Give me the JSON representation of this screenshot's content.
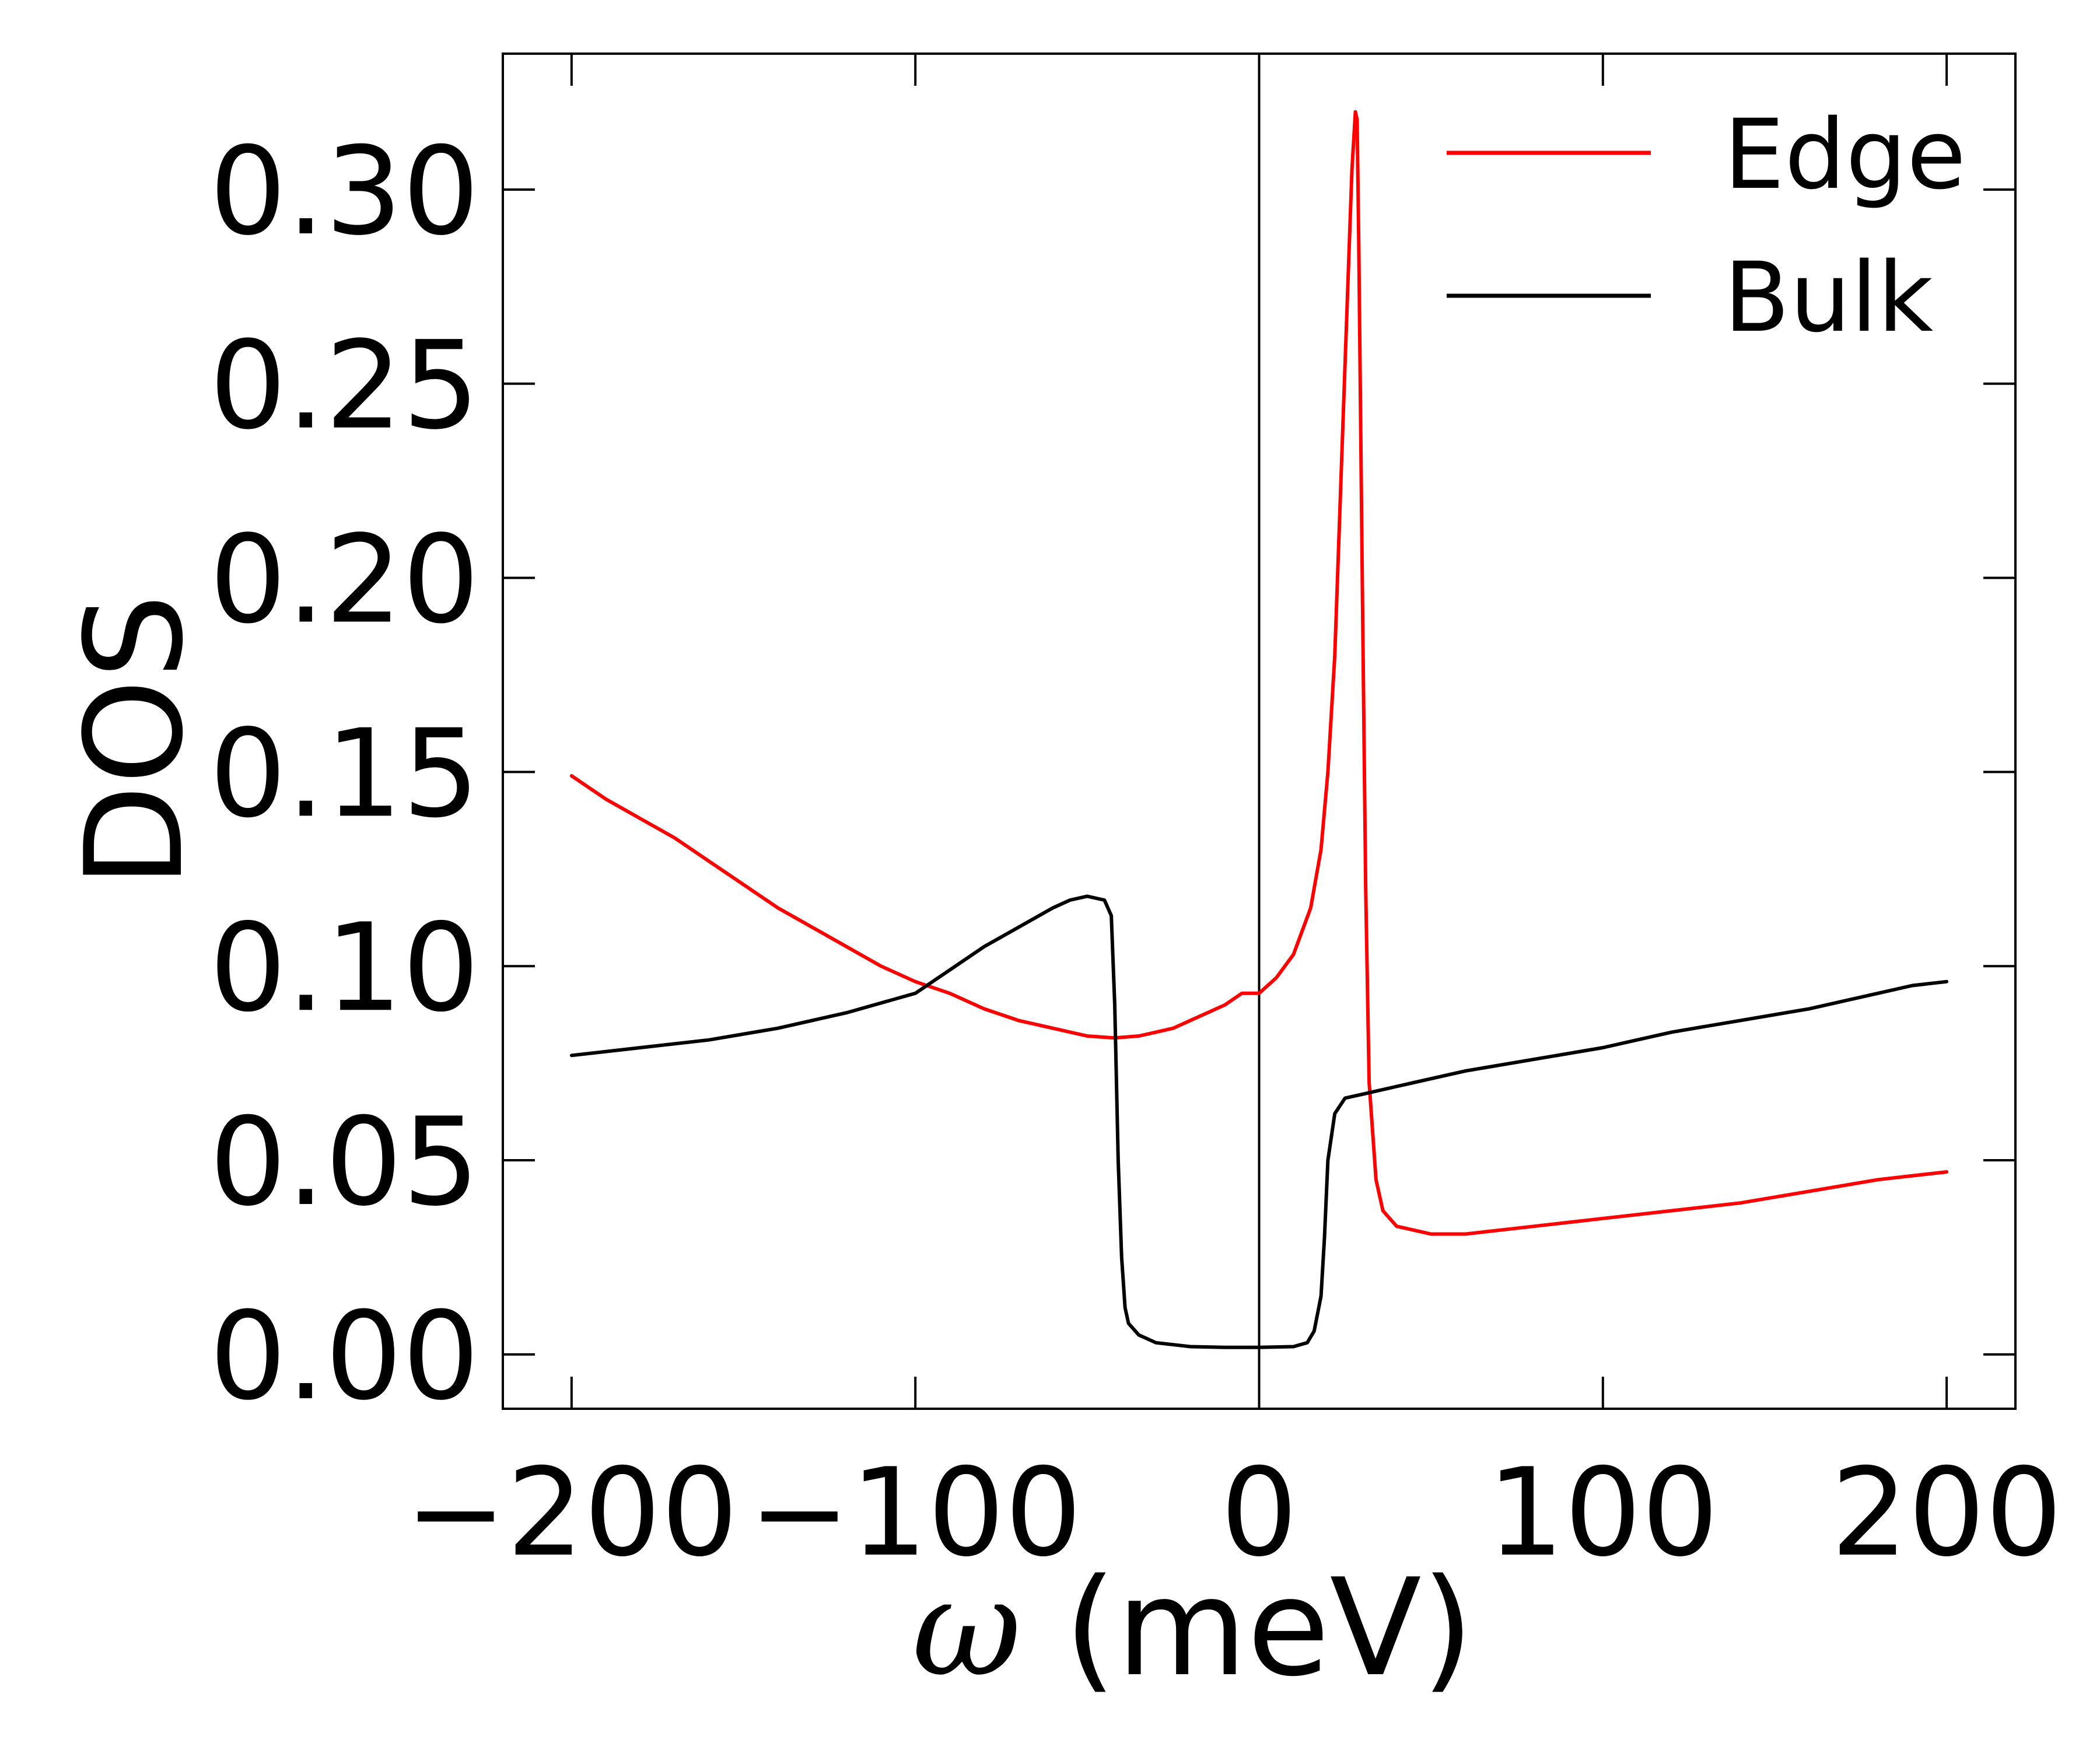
{
  "chart_data": {
    "type": "line",
    "title": "",
    "xlabel_symbol": "ω",
    "xlabel_unit": "(meV)",
    "ylabel": "DOS",
    "xlim": [
      -220,
      220
    ],
    "ylim": [
      -0.014,
      0.335
    ],
    "xticks": [
      {
        "value": -200,
        "label": "−200"
      },
      {
        "value": -100,
        "label": "−100"
      },
      {
        "value": 0,
        "label": "0"
      },
      {
        "value": 100,
        "label": "100"
      },
      {
        "value": 200,
        "label": "200"
      }
    ],
    "yticks": [
      {
        "value": 0.0,
        "label": "0.00"
      },
      {
        "value": 0.05,
        "label": "0.05"
      },
      {
        "value": 0.1,
        "label": "0.10"
      },
      {
        "value": 0.15,
        "label": "0.15"
      },
      {
        "value": 0.2,
        "label": "0.20"
      },
      {
        "value": 0.25,
        "label": "0.25"
      },
      {
        "value": 0.3,
        "label": "0.30"
      }
    ],
    "vertical_reference_line": 0,
    "grid": false,
    "legend_position": "top-right",
    "series": [
      {
        "name": "Edge",
        "color": "#ff0000",
        "x": [
          -200,
          -190,
          -180,
          -170,
          -160,
          -150,
          -140,
          -130,
          -120,
          -110,
          -100,
          -90,
          -80,
          -70,
          -60,
          -50,
          -42,
          -35,
          -30,
          -25,
          -20,
          -15,
          -10,
          -5,
          0,
          5,
          10,
          15,
          18,
          20,
          22,
          24,
          26,
          27,
          28,
          28.5,
          29,
          30,
          31,
          32,
          34,
          36,
          40,
          45,
          50,
          55,
          60,
          70,
          80,
          90,
          100,
          120,
          140,
          160,
          180,
          190,
          200
        ],
        "y": [
          0.149,
          0.143,
          0.138,
          0.133,
          0.127,
          0.121,
          0.115,
          0.11,
          0.105,
          0.1,
          0.096,
          0.093,
          0.089,
          0.086,
          0.084,
          0.082,
          0.0815,
          0.082,
          0.083,
          0.084,
          0.086,
          0.088,
          0.09,
          0.093,
          0.093,
          0.097,
          0.103,
          0.115,
          0.13,
          0.15,
          0.18,
          0.23,
          0.28,
          0.305,
          0.32,
          0.318,
          0.285,
          0.2,
          0.12,
          0.07,
          0.045,
          0.037,
          0.033,
          0.032,
          0.031,
          0.031,
          0.031,
          0.032,
          0.033,
          0.034,
          0.035,
          0.037,
          0.039,
          0.042,
          0.045,
          0.046,
          0.047
        ]
      },
      {
        "name": "Bulk",
        "color": "#000000",
        "x": [
          -200,
          -180,
          -160,
          -140,
          -120,
          -100,
          -90,
          -80,
          -70,
          -60,
          -55,
          -50,
          -45,
          -43,
          -42,
          -41,
          -40,
          -39,
          -38,
          -35,
          -30,
          -20,
          -10,
          0,
          10,
          14,
          16,
          18,
          19,
          20,
          22,
          25,
          30,
          40,
          50,
          60,
          80,
          100,
          120,
          140,
          160,
          180,
          190,
          200
        ],
        "y": [
          0.077,
          0.079,
          0.081,
          0.084,
          0.088,
          0.093,
          0.099,
          0.105,
          0.11,
          0.115,
          0.117,
          0.118,
          0.117,
          0.113,
          0.09,
          0.05,
          0.025,
          0.012,
          0.008,
          0.005,
          0.003,
          0.002,
          0.0018,
          0.0018,
          0.002,
          0.003,
          0.006,
          0.015,
          0.03,
          0.05,
          0.062,
          0.066,
          0.067,
          0.069,
          0.071,
          0.073,
          0.076,
          0.079,
          0.083,
          0.086,
          0.089,
          0.093,
          0.095,
          0.096
        ]
      }
    ]
  }
}
